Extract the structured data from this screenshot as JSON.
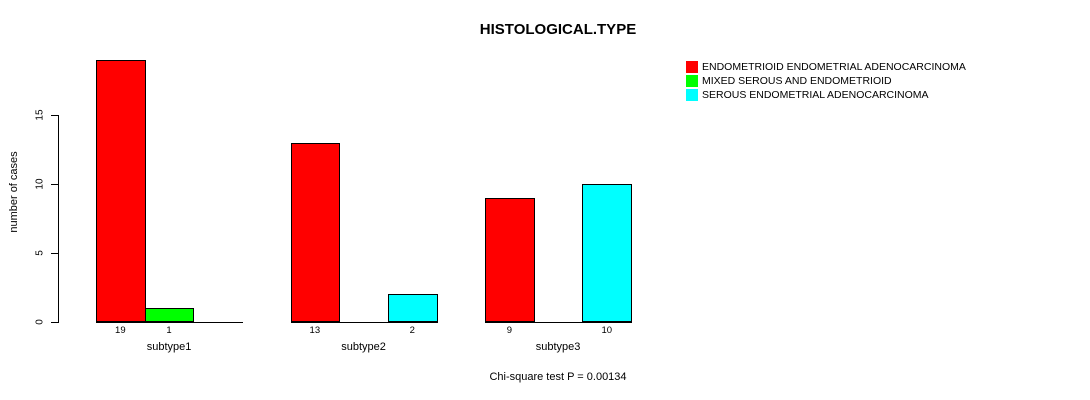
{
  "title": "HISTOLOGICAL.TYPE",
  "caption": "Chi-square test P = 0.00134",
  "colors": {
    "background": "#ffffff",
    "axis": "#000000",
    "text": "#000000",
    "endometrioid": "#ff0000",
    "mixed": "#00ff00",
    "serous": "#00ffff"
  },
  "chart_data": {
    "type": "bar",
    "title": "HISTOLOGICAL.TYPE",
    "xlabel": "",
    "ylabel": "number of cases",
    "ylim": [
      0,
      15
    ],
    "yticks": [
      0,
      5,
      10,
      15
    ],
    "grid": false,
    "legend_position": "top-right",
    "categories": [
      "subtype1",
      "subtype2",
      "subtype3"
    ],
    "series": [
      {
        "name": "ENDOMETRIOID ENDOMETRIAL ADENOCARCINOMA",
        "color": "#ff0000",
        "values": [
          19,
          13,
          9
        ]
      },
      {
        "name": "MIXED SEROUS AND ENDOMETRIOID",
        "color": "#00ff00",
        "values": [
          1,
          0,
          0
        ]
      },
      {
        "name": "SEROUS ENDOMETRIAL ADENOCARCINOMA",
        "color": "#00ffff",
        "values": [
          0,
          2,
          10
        ]
      }
    ],
    "bar_value_labels": [
      [
        "19",
        "1",
        ""
      ],
      [
        "13",
        "",
        "2"
      ],
      [
        "9",
        "",
        "10"
      ]
    ]
  }
}
